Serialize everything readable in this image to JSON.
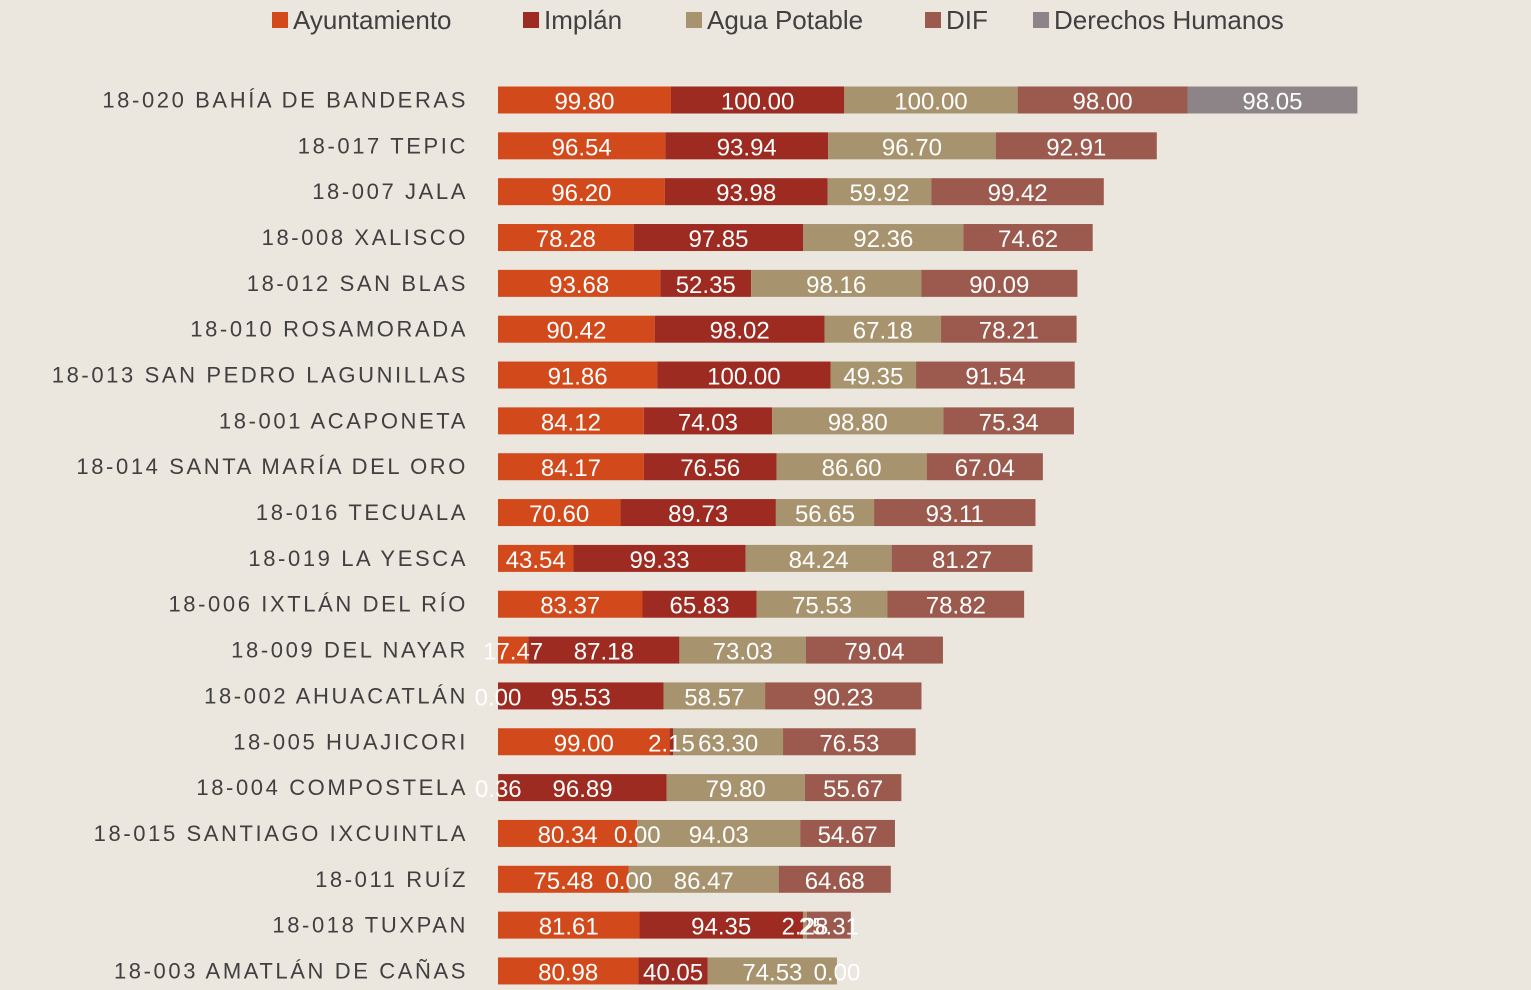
{
  "chart_data": {
    "type": "stacked-barh",
    "categories": [
      "18-020 BAHÍA DE BANDERAS",
      "18-017 TEPIC",
      "18-007 JALA",
      "18-008 XALISCO",
      "18-012 SAN BLAS",
      "18-010 ROSAMORADA",
      "18-013 SAN PEDRO LAGUNILLAS",
      "18-001 ACAPONETA",
      "18-014 SANTA MARÍA DEL ORO",
      "18-016 TECUALA",
      "18-019 LA YESCA",
      "18-006 IXTLÁN DEL RÍO",
      "18-009 DEL NAYAR",
      "18-002 AHUACATLÁN",
      "18-005 HUAJICORI",
      "18-004 COMPOSTELA",
      "18-015 SANTIAGO IXCUINTLA",
      "18-011 RUÍZ",
      "18-018 TUXPAN",
      "18-003 AMATLÁN DE CAÑAS"
    ],
    "xlim": [
      0,
      596
    ],
    "legend": "top",
    "series": [
      {
        "name": "Ayuntamiento",
        "color": "#d24a1b",
        "values": [
          99.8,
          96.54,
          96.2,
          78.28,
          93.68,
          90.42,
          91.86,
          84.12,
          84.17,
          70.6,
          43.54,
          83.37,
          17.47,
          0.0,
          99.0,
          0.36,
          80.34,
          75.48,
          81.61,
          80.98
        ],
        "value_labels": [
          "99.80",
          "96.54",
          "96.20",
          "78.28",
          "93.68",
          "90.42",
          "91.86",
          "84.12",
          "84.17",
          "70.60",
          "43.54",
          "83.37",
          "17.47",
          "0.00",
          "99.00",
          "0.36",
          "80.34",
          "75.48",
          "81.61",
          "80.98"
        ]
      },
      {
        "name": "Implán",
        "color": "#9d2b21",
        "values": [
          100.0,
          93.94,
          93.98,
          97.85,
          52.35,
          98.02,
          100.0,
          74.03,
          76.56,
          89.73,
          99.33,
          65.83,
          87.18,
          95.53,
          2.15,
          96.89,
          0.0,
          0.0,
          94.35,
          40.05
        ],
        "value_labels": [
          "100.00",
          "93.94",
          "93.98",
          "97.85",
          "52.35",
          "98.02",
          "100.00",
          "74.03",
          "76.56",
          "89.73",
          "99.33",
          "65.83",
          "87.18",
          "95.53",
          "2.15",
          "96.89",
          "0.00",
          "0.00",
          "94.35",
          "40.05"
        ]
      },
      {
        "name": "Agua Potable",
        "color": "#a8936f",
        "values": [
          100.0,
          96.7,
          59.92,
          92.36,
          98.16,
          67.18,
          49.35,
          98.8,
          86.6,
          56.65,
          84.24,
          75.53,
          73.03,
          58.57,
          63.3,
          79.8,
          94.03,
          86.47,
          2.28,
          74.53
        ],
        "value_labels": [
          "100.00",
          "96.70",
          "59.92",
          "92.36",
          "98.16",
          "67.18",
          "49.35",
          "98.80",
          "86.60",
          "56.65",
          "84.24",
          "75.53",
          "73.03",
          "58.57",
          "63.30",
          "79.80",
          "94.03",
          "86.47",
          "2.28",
          "74.53"
        ]
      },
      {
        "name": "DIF",
        "color": "#9b5a4d",
        "values": [
          98.0,
          92.91,
          99.42,
          74.62,
          90.09,
          78.21,
          91.54,
          75.34,
          67.04,
          93.11,
          81.27,
          78.82,
          79.04,
          90.23,
          76.53,
          55.67,
          54.67,
          64.68,
          25.31,
          0.0
        ],
        "value_labels": [
          "98.00",
          "92.91",
          "99.42",
          "74.62",
          "90.09",
          "78.21",
          "91.54",
          "75.34",
          "67.04",
          "93.11",
          "81.27",
          "78.82",
          "79.04",
          "90.23",
          "76.53",
          "55.67",
          "54.67",
          "64.68",
          "25.31",
          "0.00"
        ]
      },
      {
        "name": "Derechos Humanos",
        "color": "#8c8487",
        "values": [
          98.05,
          null,
          null,
          null,
          null,
          null,
          null,
          null,
          null,
          null,
          null,
          null,
          null,
          null,
          null,
          null,
          null,
          null,
          null,
          null
        ],
        "value_labels": [
          "98.05",
          null,
          null,
          null,
          null,
          null,
          null,
          null,
          null,
          null,
          null,
          null,
          null,
          null,
          null,
          null,
          null,
          null,
          null,
          null
        ]
      }
    ]
  }
}
